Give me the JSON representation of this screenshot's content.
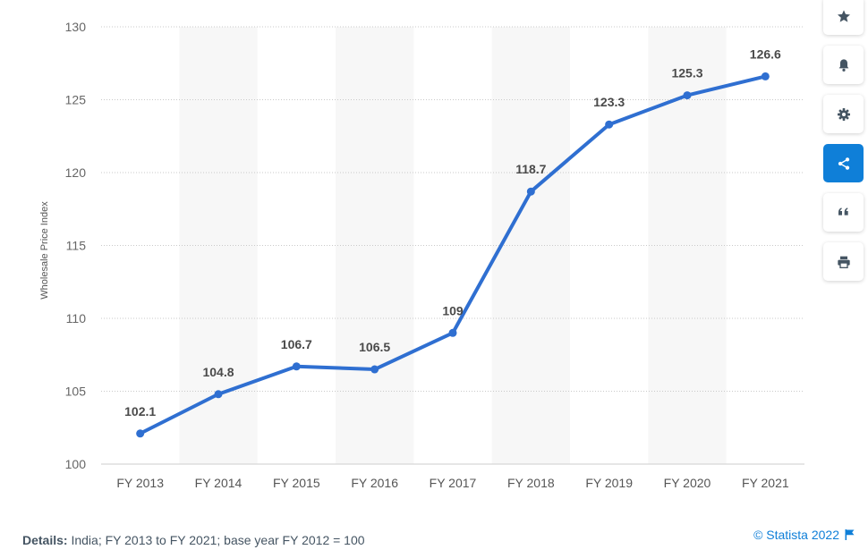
{
  "chart_data": {
    "type": "line",
    "categories": [
      "FY 2013",
      "FY 2014",
      "FY 2015",
      "FY 2016",
      "FY 2017",
      "FY 2018",
      "FY 2019",
      "FY 2020",
      "FY 2021"
    ],
    "values": [
      102.1,
      104.8,
      106.7,
      106.5,
      109,
      118.7,
      123.3,
      125.3,
      126.6
    ],
    "data_labels": [
      "102.1",
      "104.8",
      "106.7",
      "106.5",
      "109",
      "118.7",
      "123.3",
      "125.3",
      "126.6"
    ],
    "ylabel": "Wholesale Price Index",
    "ylim": [
      100,
      130
    ],
    "yticks": [
      100,
      105,
      110,
      115,
      120,
      125,
      130
    ],
    "grid": true,
    "series_color": "#2f6fd1",
    "band_color": "#f7f7f7"
  },
  "footer": {
    "details_label": "Details:",
    "details_text": "India; FY 2013 to FY 2021; base year FY 2012 = 100",
    "copyright": "© Statista 2022"
  },
  "toolbar": {
    "buttons": [
      {
        "name": "star-button",
        "icon": "star-icon",
        "active": false
      },
      {
        "name": "notification-button",
        "icon": "bell-icon",
        "active": false
      },
      {
        "name": "settings-button",
        "icon": "gear-icon",
        "active": false
      },
      {
        "name": "share-button",
        "icon": "share-icon",
        "active": true
      },
      {
        "name": "cite-button",
        "icon": "quote-icon",
        "active": false
      },
      {
        "name": "print-button",
        "icon": "printer-icon",
        "active": false
      }
    ],
    "accent_color": "#0f7fd8",
    "icon_color": "#455563"
  }
}
